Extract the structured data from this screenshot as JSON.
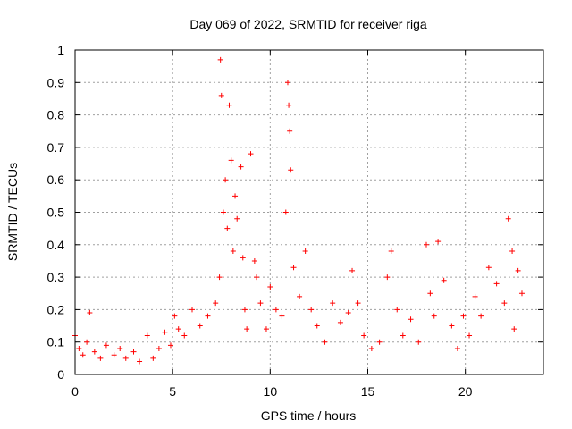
{
  "chart_data": {
    "type": "scatter",
    "title": "Day 069 of 2022, SRMTID for receiver riga",
    "xlabel": "GPS time / hours",
    "ylabel": "SRMTID / TECUs",
    "xlim": [
      0,
      24
    ],
    "ylim": [
      0,
      1
    ],
    "x_ticks": [
      0,
      5,
      10,
      15,
      20
    ],
    "x_tick_labels": [
      "0",
      "5",
      "10",
      "15",
      "20"
    ],
    "y_ticks": [
      0,
      0.1,
      0.2,
      0.3,
      0.4,
      0.5,
      0.6,
      0.7,
      0.8,
      0.9,
      1
    ],
    "y_tick_labels": [
      "0",
      "0.1",
      "0.2",
      "0.3",
      "0.4",
      "0.5",
      "0.6",
      "0.7",
      "0.8",
      "0.9",
      "1"
    ],
    "grid": true,
    "marker": "+",
    "color": "#ff0000",
    "x_range_of_data": [
      0,
      22.9
    ],
    "series": [
      {
        "name": "SRMTID",
        "x": [
          0.0,
          0.2,
          0.4,
          0.6,
          0.75,
          1.0,
          1.3,
          1.6,
          2.0,
          2.3,
          2.6,
          3.0,
          3.3,
          3.7,
          4.0,
          4.3,
          4.6,
          4.9,
          5.1,
          5.3,
          5.6,
          6.0,
          6.4,
          6.8,
          7.2,
          7.4,
          7.45,
          7.5,
          7.6,
          7.7,
          7.8,
          7.9,
          8.0,
          8.1,
          8.2,
          8.3,
          8.5,
          8.6,
          8.7,
          8.8,
          9.0,
          9.2,
          9.3,
          9.5,
          9.8,
          10.0,
          10.3,
          10.6,
          10.8,
          10.9,
          10.95,
          11.0,
          11.05,
          11.2,
          11.5,
          11.8,
          12.1,
          12.4,
          12.8,
          13.2,
          13.6,
          14.0,
          14.2,
          14.5,
          14.8,
          15.2,
          15.6,
          16.0,
          16.2,
          16.5,
          16.8,
          17.2,
          17.6,
          18.0,
          18.2,
          18.4,
          18.6,
          18.9,
          19.3,
          19.6,
          19.9,
          20.2,
          20.5,
          20.8,
          21.2,
          21.6,
          22.0,
          22.2,
          22.4,
          22.5,
          22.7,
          22.9
        ],
        "y": [
          0.12,
          0.08,
          0.06,
          0.1,
          0.19,
          0.07,
          0.05,
          0.09,
          0.06,
          0.08,
          0.05,
          0.07,
          0.04,
          0.12,
          0.05,
          0.08,
          0.13,
          0.09,
          0.18,
          0.14,
          0.12,
          0.2,
          0.15,
          0.18,
          0.22,
          0.3,
          0.97,
          0.86,
          0.5,
          0.6,
          0.45,
          0.83,
          0.66,
          0.38,
          0.55,
          0.48,
          0.64,
          0.36,
          0.2,
          0.14,
          0.68,
          0.35,
          0.3,
          0.22,
          0.14,
          0.27,
          0.2,
          0.18,
          0.5,
          0.9,
          0.83,
          0.75,
          0.63,
          0.33,
          0.24,
          0.38,
          0.2,
          0.15,
          0.1,
          0.22,
          0.16,
          0.19,
          0.32,
          0.22,
          0.12,
          0.08,
          0.1,
          0.3,
          0.38,
          0.2,
          0.12,
          0.17,
          0.1,
          0.4,
          0.25,
          0.18,
          0.41,
          0.29,
          0.15,
          0.08,
          0.18,
          0.12,
          0.24,
          0.18,
          0.33,
          0.28,
          0.22,
          0.48,
          0.38,
          0.14,
          0.32,
          0.25
        ]
      }
    ]
  }
}
